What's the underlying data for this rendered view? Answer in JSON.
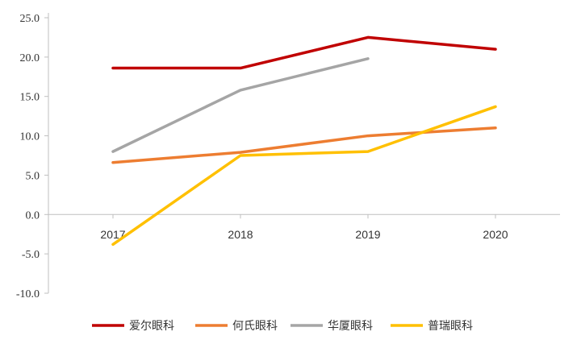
{
  "chart_data": {
    "type": "line",
    "title": "",
    "xlabel": "",
    "ylabel": "",
    "categories": [
      "2017",
      "2018",
      "2019",
      "2020"
    ],
    "ylim": [
      -10,
      25
    ],
    "yticks": [
      "25.0",
      "20.0",
      "15.0",
      "10.0",
      "5.0",
      "0.0",
      "-5.0",
      "-10.0"
    ],
    "grid": false,
    "legend": "bottom",
    "series": [
      {
        "name": "爱尔眼科",
        "color": "#C00000",
        "values": [
          18.6,
          18.6,
          22.5,
          21.0
        ]
      },
      {
        "name": "何氏眼科",
        "color": "#ED7D31",
        "values": [
          6.6,
          7.9,
          10.0,
          11.0
        ]
      },
      {
        "name": "华厦眼科",
        "color": "#A5A5A5",
        "values": [
          8.0,
          15.8,
          19.8,
          null
        ]
      },
      {
        "name": "普瑞眼科",
        "color": "#FFC000",
        "values": [
          -3.8,
          7.5,
          8.0,
          13.7
        ]
      }
    ]
  }
}
